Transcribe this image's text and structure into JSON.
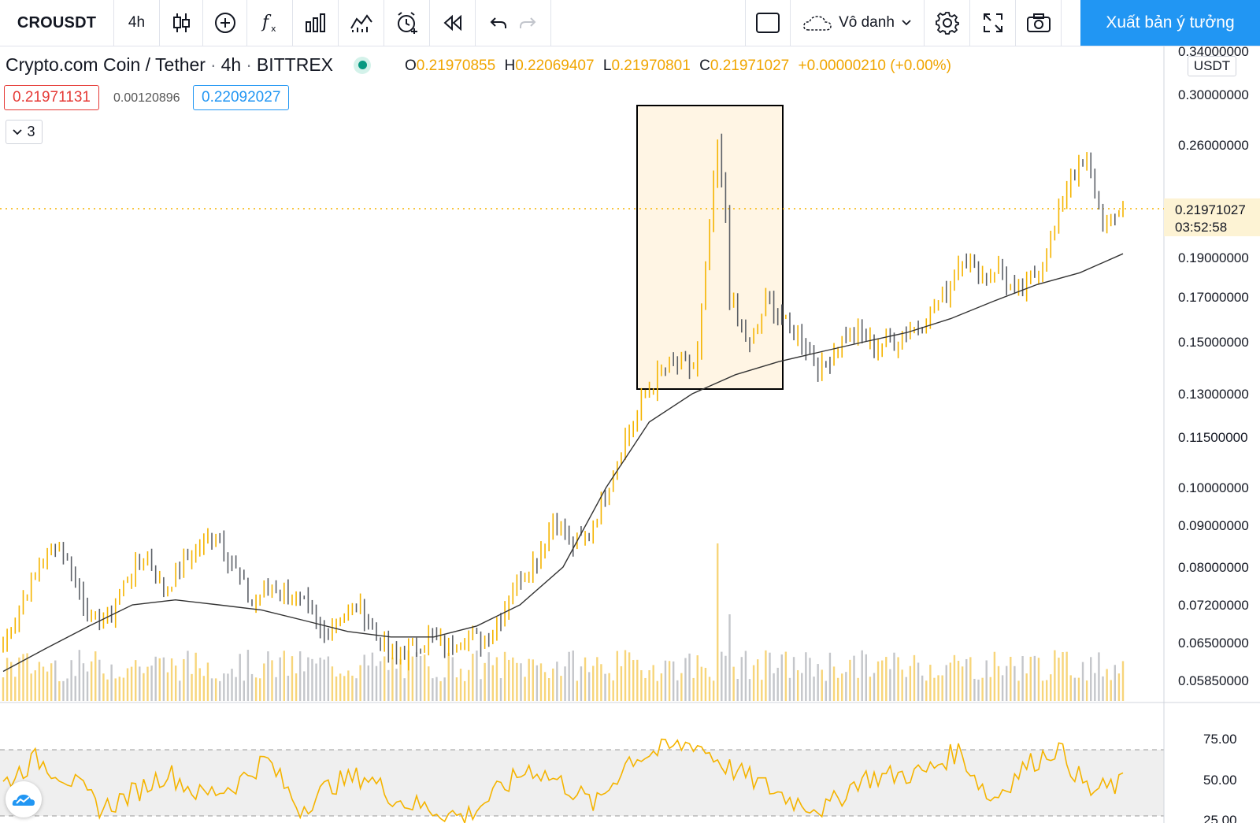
{
  "toolbar": {
    "symbol": "CROUSDT",
    "interval": "4h",
    "layout_name": "Vô danh",
    "publish_label": "Xuất bản ý tưởng"
  },
  "legend": {
    "title": "Crypto.com Coin / Tether",
    "interval": "4h",
    "exchange": "BITTREX",
    "open": "0.21970855",
    "high": "0.22069407",
    "low": "0.21970801",
    "close": "0.21971027",
    "change": "+0.00000210 (+0.00%)",
    "bid": "0.21971131",
    "spread": "0.00120896",
    "ask": "0.22092027",
    "indicator_count": "3"
  },
  "price_scale": {
    "currency": "USDT",
    "last_price": "0.21971027",
    "countdown": "03:52:58",
    "ticks": [
      "0.34000000",
      "0.30000000",
      "0.26000000",
      "0.19000000",
      "0.17000000",
      "0.15000000",
      "0.13000000",
      "0.11500000",
      "0.10000000",
      "0.09000000",
      "0.08000000",
      "0.07200000",
      "0.06500000",
      "0.05850000"
    ],
    "rsi_ticks": [
      "75.00",
      "50.00",
      "25.00"
    ]
  },
  "colors": {
    "up": "#f5b400",
    "down": "#5b5f66",
    "accent": "#2196f3",
    "bid": "#e53935",
    "ask": "#2196f3",
    "highlight_fill": "#fff5e4"
  },
  "chart_data": {
    "type": "candlestick",
    "symbol": "CROUSDT",
    "scale": "log",
    "ylim": [
      0.0585,
      0.34
    ],
    "approx_closes": [
      0.065,
      0.072,
      0.08,
      0.086,
      0.078,
      0.068,
      0.07,
      0.078,
      0.083,
      0.075,
      0.08,
      0.085,
      0.088,
      0.08,
      0.072,
      0.076,
      0.074,
      0.072,
      0.066,
      0.07,
      0.072,
      0.066,
      0.062,
      0.064,
      0.066,
      0.064,
      0.067,
      0.065,
      0.07,
      0.078,
      0.082,
      0.092,
      0.085,
      0.088,
      0.1,
      0.115,
      0.128,
      0.138,
      0.14,
      0.14,
      0.235,
      0.165,
      0.148,
      0.17,
      0.158,
      0.15,
      0.138,
      0.15,
      0.155,
      0.148,
      0.15,
      0.155,
      0.16,
      0.172,
      0.192,
      0.18,
      0.185,
      0.17,
      0.18,
      0.2,
      0.24,
      0.245,
      0.205,
      0.2197
    ],
    "ma_approx": [
      0.06,
      0.064,
      0.068,
      0.072,
      0.073,
      0.072,
      0.071,
      0.069,
      0.067,
      0.066,
      0.066,
      0.068,
      0.072,
      0.08,
      0.1,
      0.12,
      0.13,
      0.137,
      0.142,
      0.146,
      0.15,
      0.154,
      0.16,
      0.168,
      0.176,
      0.182,
      0.192
    ],
    "rsi_approx": [
      55,
      70,
      58,
      40,
      50,
      62,
      48,
      54,
      70,
      40,
      55,
      60,
      45,
      40,
      35,
      50,
      65,
      55,
      42,
      70,
      75,
      80,
      65,
      55,
      45,
      40,
      58,
      60,
      62,
      75,
      45,
      65,
      77,
      50,
      55
    ],
    "highlight": {
      "from": "rally peak",
      "covers": "spike to ~0.268"
    }
  }
}
